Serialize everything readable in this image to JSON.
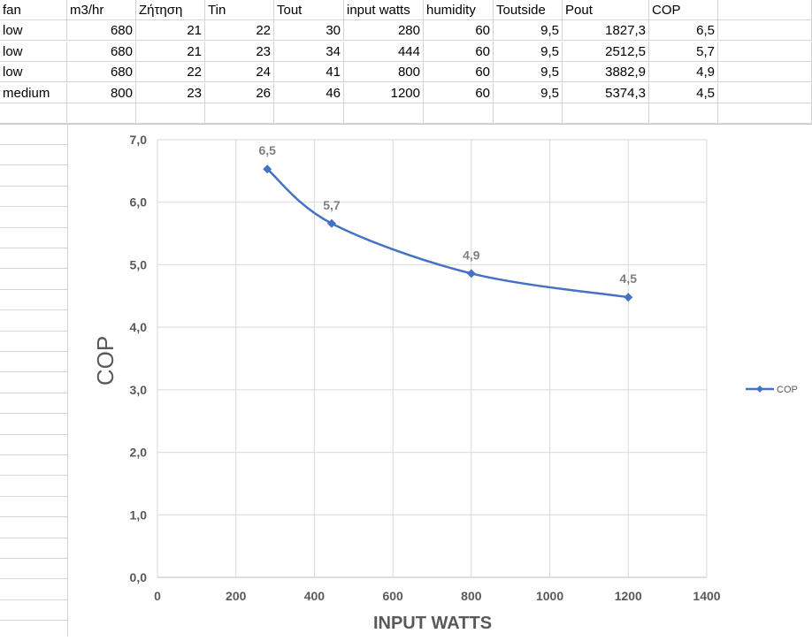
{
  "table": {
    "headers": [
      "fan",
      "m3/hr",
      "Ζήτηση",
      "Tin",
      "Tout",
      "input watts",
      "humidity",
      "Toutside",
      "Pout",
      "COP"
    ],
    "rows": [
      [
        "low",
        "680",
        "21",
        "22",
        "30",
        "280",
        "60",
        "9,5",
        "1827,3",
        "6,5"
      ],
      [
        "low",
        "680",
        "21",
        "23",
        "34",
        "444",
        "60",
        "9,5",
        "2512,5",
        "5,7"
      ],
      [
        "low",
        "680",
        "22",
        "24",
        "41",
        "800",
        "60",
        "9,5",
        "3882,9",
        "4,9"
      ],
      [
        "medium",
        "800",
        "23",
        "26",
        "46",
        "1200",
        "60",
        "9,5",
        "5374,3",
        "4,5"
      ]
    ]
  },
  "chart_data": {
    "type": "scatter",
    "title": "",
    "xlabel": "INPUT WATTS",
    "ylabel": "COP",
    "xlim": [
      0,
      1400
    ],
    "ylim": [
      0,
      7
    ],
    "x_ticks": [
      "0",
      "200",
      "400",
      "600",
      "800",
      "1000",
      "1200",
      "1400"
    ],
    "y_ticks": [
      "0,0",
      "1,0",
      "2,0",
      "3,0",
      "4,0",
      "5,0",
      "6,0",
      "7,0"
    ],
    "grid": true,
    "legend_position": "right",
    "series": [
      {
        "name": "COP",
        "color": "#4472c4",
        "line": "smooth",
        "marker": "diamond",
        "x": [
          280,
          444,
          800,
          1200
        ],
        "y": [
          6.53,
          5.66,
          4.86,
          4.48
        ],
        "labels": [
          "6,5",
          "5,7",
          "4,9",
          "4,5"
        ]
      }
    ]
  }
}
